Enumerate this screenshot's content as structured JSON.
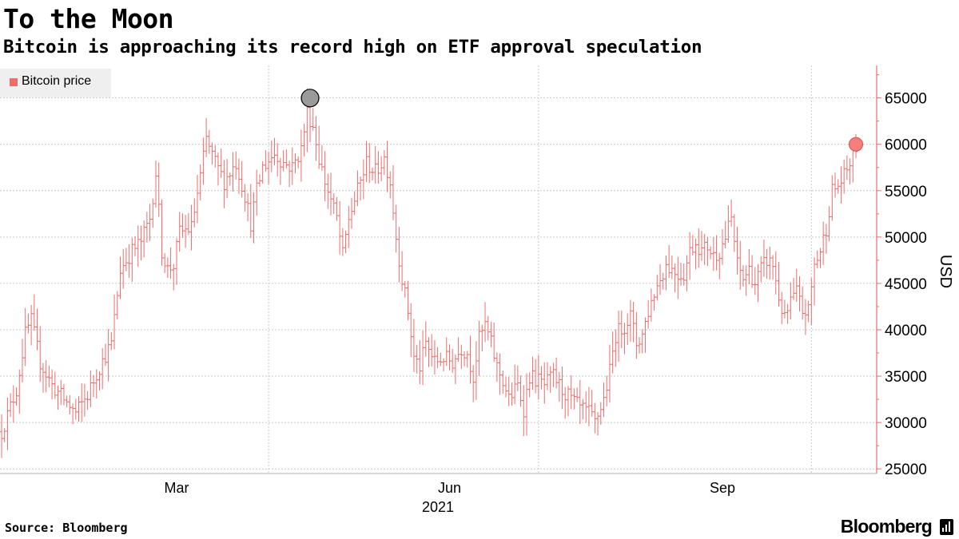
{
  "header": {
    "title": "To the Moon",
    "subtitle": "Bitcoin is approaching its record high on ETF approval speculation"
  },
  "footer": {
    "source": "Source: Bloomberg",
    "brand": "Bloomberg"
  },
  "colors": {
    "series": "#f06b6b",
    "marker_high": "#9a9a9a",
    "marker_current": "#f57f7f",
    "grid": "#c8c8c8",
    "legend_bg": "#efefef"
  },
  "chart_data": {
    "type": "ohlc",
    "title": "To the Moon",
    "subtitle": "Bitcoin is approaching its record high on ETF approval speculation",
    "ylabel": "USD",
    "xlabel": "2021",
    "ylim": [
      24500,
      68500
    ],
    "yticks": [
      25000,
      30000,
      35000,
      40000,
      45000,
      50000,
      55000,
      60000,
      65000
    ],
    "grid": true,
    "legend": {
      "position": "top-left",
      "entries": [
        "Bitcoin price"
      ]
    },
    "x_month_labels": [
      {
        "label": "Mar",
        "day": 59
      },
      {
        "label": "Jun",
        "day": 151
      },
      {
        "label": "Sep",
        "day": 243
      }
    ],
    "x_gridline_days": [
      90,
      181,
      273
    ],
    "x_year_label": "2021",
    "day_range": [
      0,
      288
    ],
    "series": [
      {
        "name": "Bitcoin price",
        "anchors": [
          [
            0,
            29000
          ],
          [
            5,
            33500
          ],
          [
            8,
            39500
          ],
          [
            10,
            41000
          ],
          [
            13,
            36500
          ],
          [
            17,
            34000
          ],
          [
            21,
            32500
          ],
          [
            25,
            31000
          ],
          [
            29,
            33000
          ],
          [
            33,
            36000
          ],
          [
            37,
            38500
          ],
          [
            40,
            46500
          ],
          [
            44,
            48500
          ],
          [
            47,
            49500
          ],
          [
            50,
            52000
          ],
          [
            52,
            57000
          ],
          [
            54,
            48500
          ],
          [
            56,
            46500
          ],
          [
            58,
            47000
          ],
          [
            60,
            50500
          ],
          [
            64,
            51000
          ],
          [
            67,
            56500
          ],
          [
            69,
            60500
          ],
          [
            72,
            58000
          ],
          [
            75,
            56000
          ],
          [
            79,
            58000
          ],
          [
            82,
            54500
          ],
          [
            84,
            51500
          ],
          [
            86,
            55000
          ],
          [
            88,
            57500
          ],
          [
            92,
            59000
          ],
          [
            95,
            58000
          ],
          [
            98,
            57500
          ],
          [
            101,
            59500
          ],
          [
            103,
            63500
          ],
          [
            105,
            62000
          ],
          [
            107,
            58500
          ],
          [
            109,
            56000
          ],
          [
            111,
            54000
          ],
          [
            113,
            52000
          ],
          [
            115,
            48000
          ],
          [
            117,
            52000
          ],
          [
            120,
            55000
          ],
          [
            123,
            58000
          ],
          [
            126,
            57000
          ],
          [
            129,
            58500
          ],
          [
            131,
            56000
          ],
          [
            133,
            50000
          ],
          [
            135,
            45500
          ],
          [
            137,
            42000
          ],
          [
            139,
            37000
          ],
          [
            141,
            36000
          ],
          [
            143,
            38500
          ],
          [
            146,
            36500
          ],
          [
            149,
            37000
          ],
          [
            152,
            36500
          ],
          [
            155,
            38000
          ],
          [
            157,
            37500
          ],
          [
            159,
            35000
          ],
          [
            161,
            39000
          ],
          [
            163,
            40500
          ],
          [
            165,
            38500
          ],
          [
            167,
            36000
          ],
          [
            169,
            34500
          ],
          [
            171,
            32500
          ],
          [
            174,
            34000
          ],
          [
            176,
            31500
          ],
          [
            178,
            35000
          ],
          [
            181,
            34500
          ],
          [
            183,
            34000
          ],
          [
            186,
            35000
          ],
          [
            189,
            33500
          ],
          [
            192,
            32500
          ],
          [
            195,
            31500
          ],
          [
            198,
            31000
          ],
          [
            200,
            30000
          ],
          [
            203,
            32500
          ],
          [
            205,
            35500
          ],
          [
            207,
            39500
          ],
          [
            210,
            40500
          ],
          [
            212,
            41500
          ],
          [
            214,
            38500
          ],
          [
            216,
            39500
          ],
          [
            218,
            42000
          ],
          [
            220,
            44000
          ],
          [
            222,
            45500
          ],
          [
            224,
            47000
          ],
          [
            226,
            46500
          ],
          [
            228,
            46000
          ],
          [
            230,
            46000
          ],
          [
            232,
            48500
          ],
          [
            234,
            49500
          ],
          [
            236,
            48500
          ],
          [
            238,
            49000
          ],
          [
            240,
            48000
          ],
          [
            242,
            48500
          ],
          [
            244,
            50000
          ],
          [
            246,
            52000
          ],
          [
            248,
            47000
          ],
          [
            250,
            45500
          ],
          [
            252,
            46500
          ],
          [
            254,
            45000
          ],
          [
            256,
            46500
          ],
          [
            258,
            47500
          ],
          [
            260,
            47000
          ],
          [
            262,
            43500
          ],
          [
            264,
            41000
          ],
          [
            266,
            43000
          ],
          [
            268,
            44000
          ],
          [
            270,
            42000
          ],
          [
            272,
            42000
          ],
          [
            274,
            47000
          ],
          [
            276,
            48500
          ],
          [
            278,
            51000
          ],
          [
            280,
            55000
          ],
          [
            282,
            55500
          ],
          [
            284,
            56500
          ],
          [
            286,
            58000
          ],
          [
            288,
            59800
          ]
        ],
        "all_time_high": {
          "day": 104,
          "value": 64900
        },
        "latest": {
          "day": 288,
          "value": 60000
        }
      }
    ]
  }
}
